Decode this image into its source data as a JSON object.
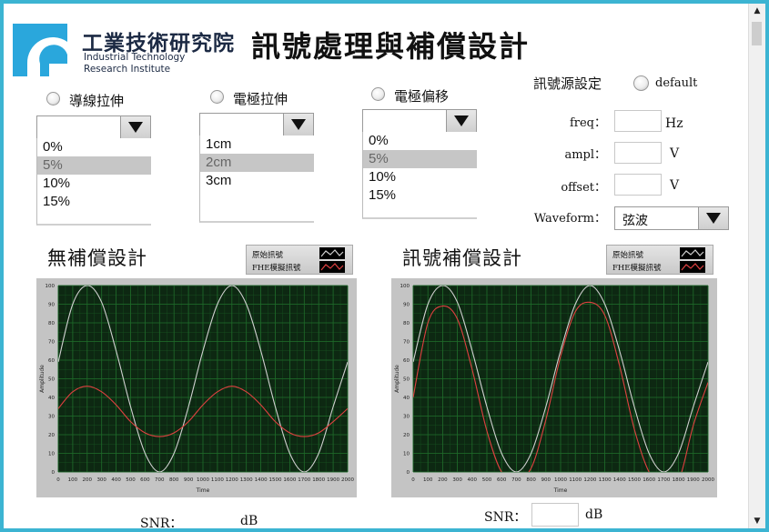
{
  "header": {
    "org_name_cn": "工業技術研究院",
    "org_name_en_line1": "Industrial Technology",
    "org_name_en_line2": "Research Institute",
    "title": "訊號處理與補償設計"
  },
  "controls": {
    "wire_stretch": {
      "label": "導線拉伸",
      "options": [
        "0%",
        "5%",
        "10%",
        "15%"
      ],
      "selected_index": 1,
      "combo_value": ""
    },
    "electrode_stretch": {
      "label": "電極拉伸",
      "options": [
        "1cm",
        "2cm",
        "3cm"
      ],
      "selected_index": 1,
      "combo_value": ""
    },
    "electrode_offset": {
      "label": "電極偏移",
      "options": [
        "0%",
        "5%",
        "10%",
        "15%"
      ],
      "selected_index": 1,
      "combo_value": ""
    }
  },
  "signal_source": {
    "label": "訊號源設定",
    "default_label": "default",
    "freq_label": "freq：",
    "freq_value": "",
    "freq_unit": "Hz",
    "ampl_label": "ampl：",
    "ampl_value": "",
    "ampl_unit": "V",
    "offset_label": "offset：",
    "offset_value": "",
    "offset_unit": "V",
    "waveform_label": "Waveform：",
    "waveform_value": "弦波"
  },
  "panels": {
    "left": {
      "title": "無補償設計",
      "legend_original": "原始訊號",
      "legend_fhe": "FHE模擬訊號",
      "snr_label": "SNR：",
      "snr_unit": "dB",
      "snr_value": ""
    },
    "right": {
      "title": "訊號補償設計",
      "legend_original": "原始訊號",
      "legend_fhe": "FHE模擬訊號",
      "snr_label": "SNR：",
      "snr_unit": "dB",
      "snr_value": ""
    }
  },
  "colors": {
    "plot_bg": "#0d2812",
    "grid": "#1f6b2a",
    "original": "#d0d0d0",
    "fhe": "#e04040",
    "frame": "#3cb4d2"
  },
  "chart_data": [
    {
      "type": "line",
      "xlabel": "Time",
      "ylabel": "Amplitude",
      "xlim": [
        0,
        2000
      ],
      "ylim": [
        0,
        100
      ],
      "x_ticks": [
        0,
        100,
        200,
        300,
        400,
        500,
        600,
        700,
        800,
        900,
        1000,
        1100,
        1200,
        1300,
        1400,
        1500,
        1600,
        1700,
        1800,
        1900,
        2000
      ],
      "y_ticks": [
        0,
        10,
        20,
        30,
        40,
        50,
        60,
        70,
        80,
        90,
        100
      ],
      "series": [
        {
          "name": "原始訊號",
          "color": "#d0d0d0",
          "x": [
            0,
            100,
            200,
            300,
            400,
            500,
            600,
            700,
            800,
            900,
            1000,
            1100,
            1200,
            1300,
            1400,
            1500,
            1600,
            1700,
            1800,
            1900,
            2000
          ],
          "y": [
            59,
            90,
            100,
            91,
            65,
            35,
            10,
            0,
            10,
            35,
            65,
            90,
            100,
            90,
            65,
            35,
            10,
            0,
            10,
            35,
            59
          ]
        },
        {
          "name": "FHE模擬訊號",
          "color": "#e04040",
          "x": [
            0,
            100,
            200,
            300,
            400,
            500,
            600,
            700,
            800,
            900,
            1000,
            1100,
            1200,
            1300,
            1400,
            1500,
            1600,
            1700,
            1800,
            1900,
            2000
          ],
          "y": [
            34,
            43,
            46,
            43,
            36,
            27,
            21,
            19,
            21,
            27,
            36,
            43,
            46,
            43,
            36,
            27,
            21,
            19,
            21,
            27,
            34
          ]
        }
      ]
    },
    {
      "type": "line",
      "xlabel": "Time",
      "ylabel": "Amplitude",
      "xlim": [
        0,
        2000
      ],
      "ylim": [
        0,
        100
      ],
      "x_ticks": [
        0,
        100,
        200,
        300,
        400,
        500,
        600,
        700,
        800,
        900,
        1000,
        1100,
        1200,
        1300,
        1400,
        1500,
        1600,
        1700,
        1800,
        1900,
        2000
      ],
      "y_ticks": [
        0,
        10,
        20,
        30,
        40,
        50,
        60,
        70,
        80,
        90,
        100
      ],
      "series": [
        {
          "name": "原始訊號",
          "color": "#d0d0d0",
          "x": [
            0,
            100,
            200,
            300,
            400,
            500,
            600,
            700,
            800,
            900,
            1000,
            1100,
            1200,
            1300,
            1400,
            1500,
            1600,
            1700,
            1800,
            1900,
            2000
          ],
          "y": [
            59,
            90,
            100,
            91,
            65,
            35,
            10,
            0,
            10,
            35,
            65,
            90,
            100,
            90,
            65,
            35,
            10,
            0,
            10,
            35,
            59
          ]
        },
        {
          "name": "FHE模擬訊號",
          "color": "#e04040",
          "x": [
            0,
            100,
            200,
            300,
            400,
            500,
            600,
            700,
            800,
            900,
            1000,
            1100,
            1200,
            1300,
            1400,
            1500,
            1600,
            1700,
            1800,
            1900,
            2000
          ],
          "y": [
            40,
            80,
            89,
            82,
            55,
            22,
            0,
            -3,
            2,
            28,
            62,
            86,
            91,
            84,
            57,
            23,
            0,
            -8,
            -5,
            25,
            48
          ]
        }
      ]
    }
  ]
}
